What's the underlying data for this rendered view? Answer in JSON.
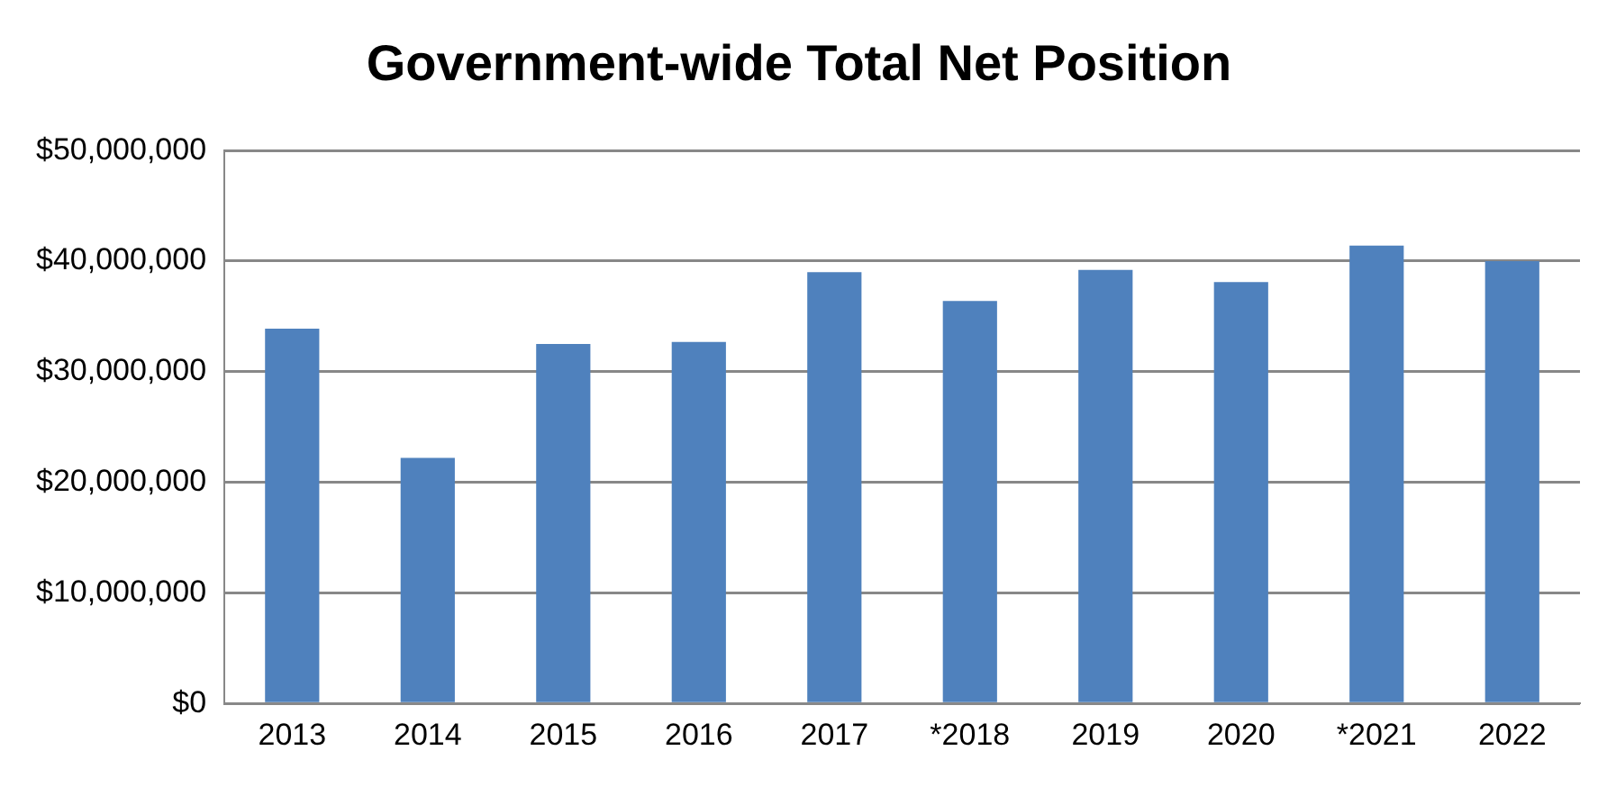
{
  "chart_data": {
    "type": "bar",
    "title": "Government-wide Total Net Position",
    "categories": [
      "2013",
      "2014",
      "2015",
      "2016",
      "2017",
      "*2018",
      "2019",
      "2020",
      "*2021",
      "2022"
    ],
    "values": [
      33900000,
      22200000,
      32500000,
      32700000,
      39000000,
      36400000,
      39200000,
      38100000,
      41400000,
      40000000
    ],
    "color": "#4f81bd",
    "ylim": [
      0,
      50000000
    ],
    "yticks": [
      {
        "value": 0,
        "label": "$0"
      },
      {
        "value": 10000000,
        "label": "$10,000,000"
      },
      {
        "value": 20000000,
        "label": "$20,000,000"
      },
      {
        "value": 30000000,
        "label": "$30,000,000"
      },
      {
        "value": 40000000,
        "label": "$40,000,000"
      },
      {
        "value": 50000000,
        "label": "$50,000,000"
      }
    ],
    "grid": "y",
    "legend": false
  }
}
